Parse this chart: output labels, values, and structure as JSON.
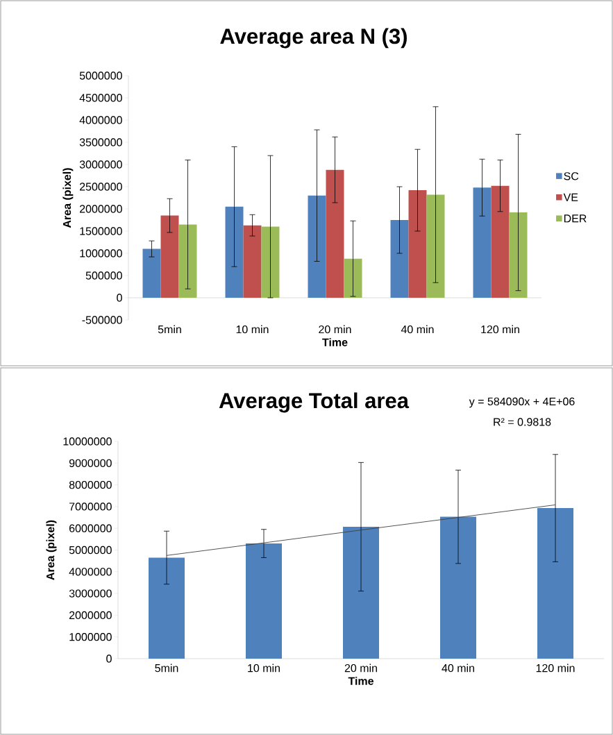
{
  "chart_data": [
    {
      "type": "bar",
      "title": "Average area N (3)",
      "xlabel": "Time",
      "ylabel": "Area (pixel)",
      "categories": [
        "5min",
        "10 min",
        "20 min",
        "40 min",
        "120 min"
      ],
      "series": [
        {
          "name": "SC",
          "color": "#4f81bd",
          "values": [
            1100000,
            2050000,
            2300000,
            1750000,
            2480000
          ],
          "errors": [
            180000,
            1350000,
            1480000,
            750000,
            640000
          ]
        },
        {
          "name": "VE",
          "color": "#c0504d",
          "values": [
            1850000,
            1630000,
            2880000,
            2420000,
            2520000
          ],
          "errors": [
            380000,
            240000,
            740000,
            920000,
            580000
          ]
        },
        {
          "name": "DER",
          "color": "#9bbb59",
          "values": [
            1650000,
            1600000,
            880000,
            2320000,
            1920000
          ],
          "errors": [
            1450000,
            1600000,
            850000,
            1980000,
            1760000
          ]
        }
      ],
      "ylim": [
        -500000,
        5000000
      ],
      "yticks": [
        -500000,
        0,
        500000,
        1000000,
        1500000,
        2000000,
        2500000,
        3000000,
        3500000,
        4000000,
        4500000,
        5000000
      ],
      "legend": "right"
    },
    {
      "type": "bar",
      "title": "Average Total area",
      "xlabel": "Time",
      "ylabel": "Area (pixel)",
      "categories": [
        "5min",
        "10 min",
        "20 min",
        "40 min",
        "120 min"
      ],
      "series": [
        {
          "color": "#4f81bd",
          "values": [
            4650000,
            5300000,
            6070000,
            6530000,
            6930000
          ],
          "errors": [
            1220000,
            650000,
            2960000,
            2150000,
            2470000
          ]
        },
        {
          "type": "line",
          "color": "#404040",
          "values": [
            4750000,
            5330000,
            5920000,
            6500000,
            7080000
          ]
        }
      ],
      "ylim": [
        0,
        10000000
      ],
      "yticks": [
        0,
        1000000,
        2000000,
        3000000,
        4000000,
        5000000,
        6000000,
        7000000,
        8000000,
        9000000,
        10000000
      ],
      "annotations": [
        "y = 584090x + 4E+06",
        "R² = 0.9818"
      ],
      "legend": false
    }
  ]
}
